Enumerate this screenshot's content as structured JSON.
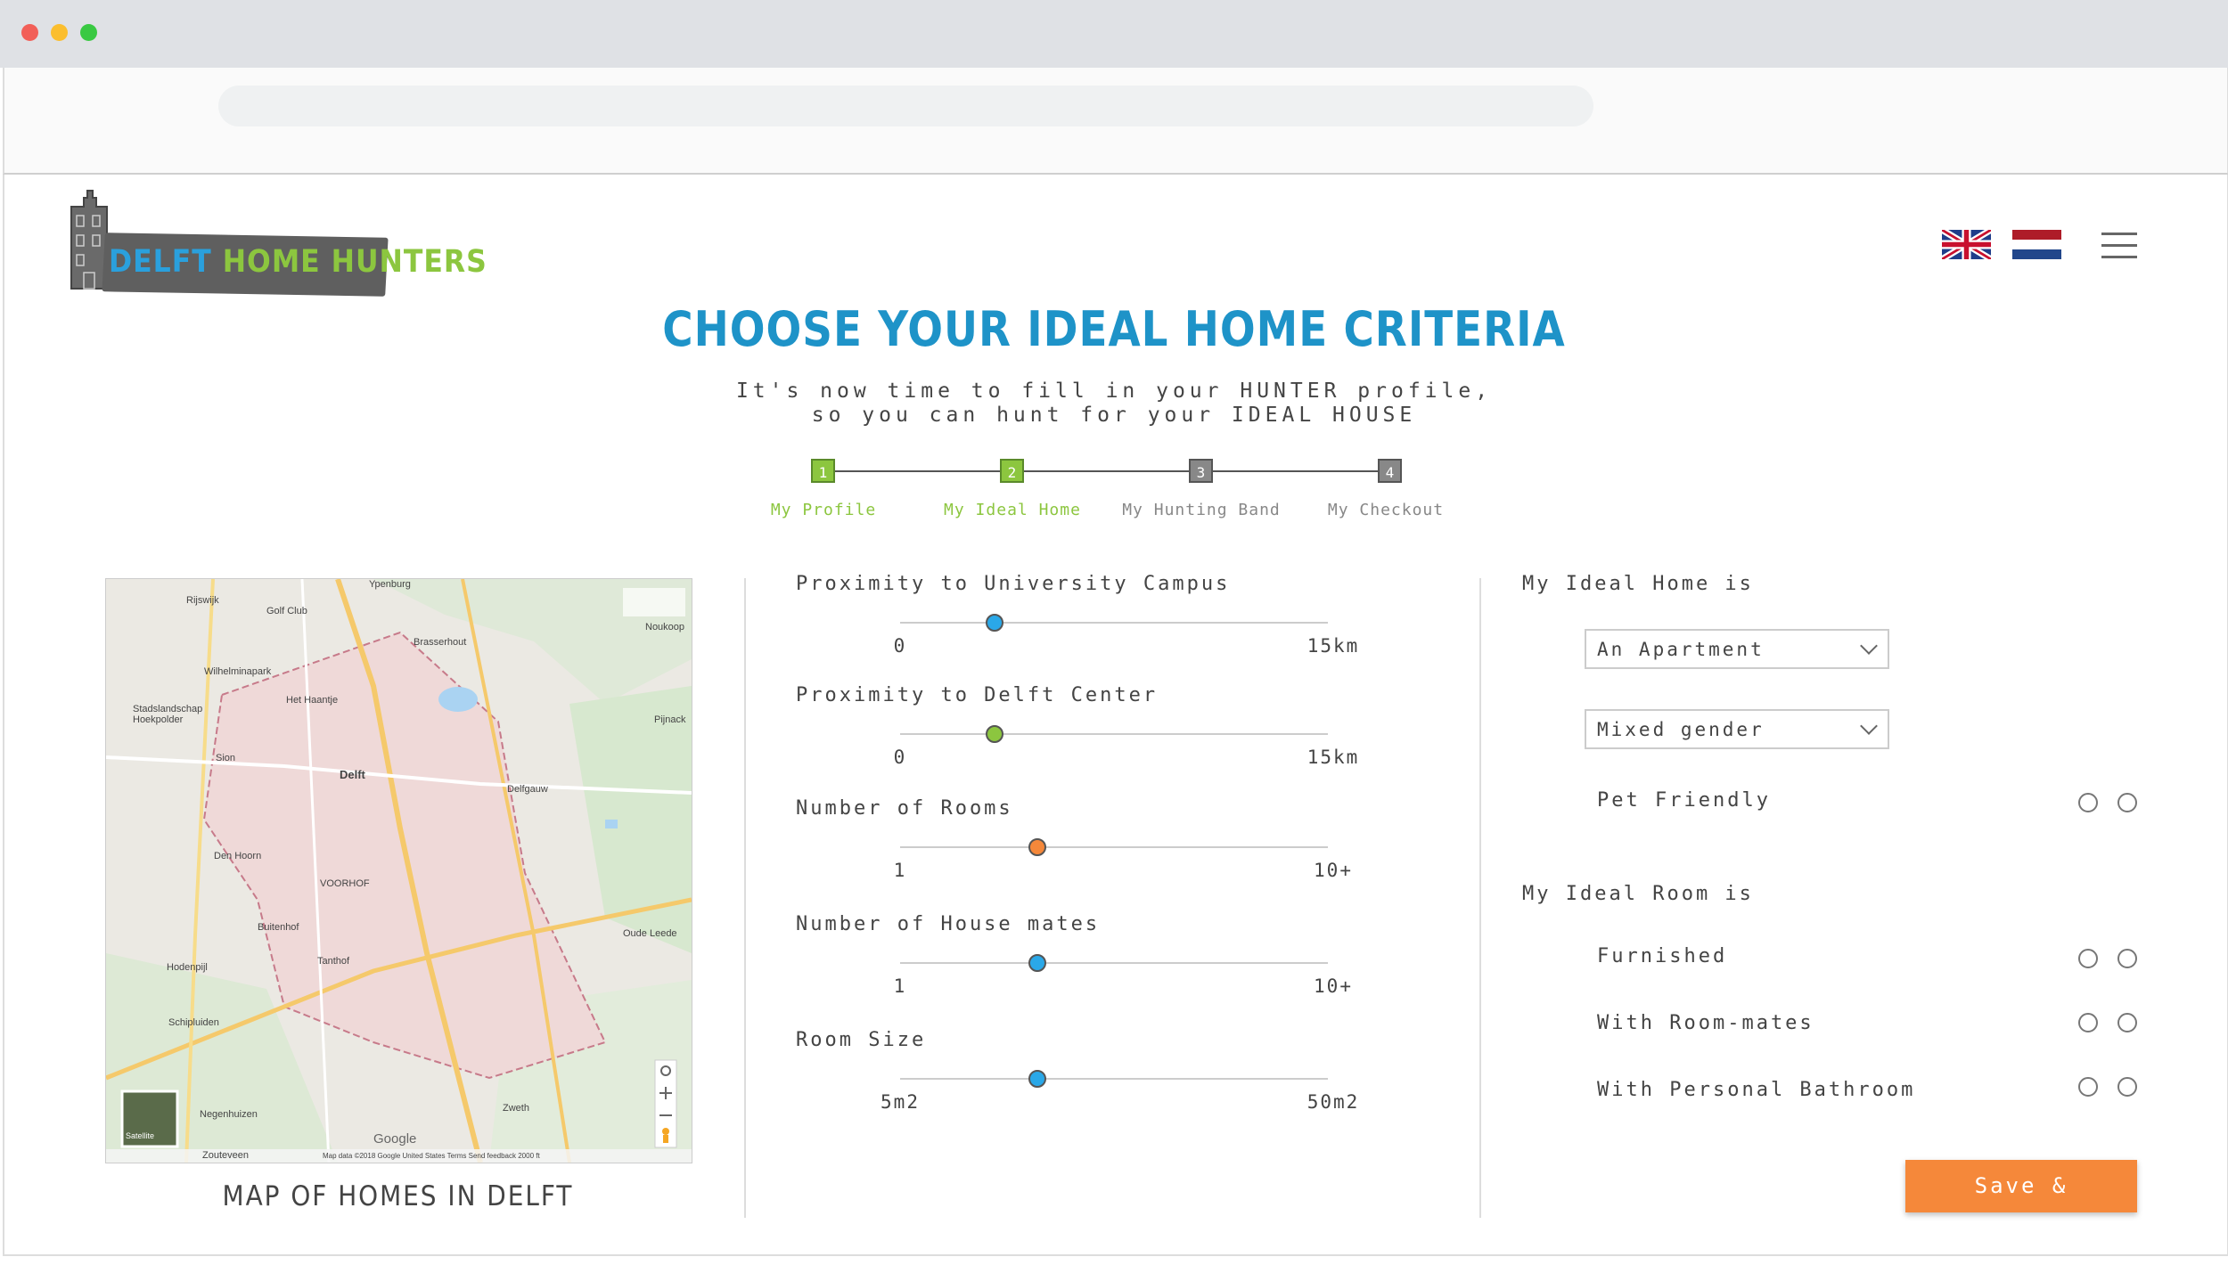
{
  "header": {
    "logo_text_part1": "DELFT",
    "logo_text_part2": "HOME HUNTERS"
  },
  "title": "CHOOSE YOUR IDEAL HOME CRITERIA",
  "subtitle_line1": "It's now time to fill in your HUNTER profile,",
  "subtitle_line2": "so you can hunt for your IDEAL HOUSE",
  "stepper": {
    "steps": [
      {
        "number": "1",
        "label": "My Profile",
        "status": "done"
      },
      {
        "number": "2",
        "label": "My Ideal Home",
        "status": "done"
      },
      {
        "number": "3",
        "label": "My Hunting Band",
        "status": "todo"
      },
      {
        "number": "4",
        "label": "My Checkout",
        "status": "todo"
      }
    ]
  },
  "map": {
    "caption": "MAP OF HOMES IN DELFT",
    "labels": {
      "delft": "Delft",
      "rijswijk": "Rijswijk",
      "ypenburg": "Ypenburg",
      "noukoop": "Noukoop",
      "den_hoorn": "Den Hoorn",
      "voorhof": "VOORHOF",
      "tanthof": "Tanthof",
      "buitenhof": "Buitenhof",
      "schipluiden": "Schipluiden",
      "hodenpijl": "Hodenpijl",
      "delfgauw": "Delfgauw",
      "pijnacker": "Pijnack",
      "oude_leede": "Oude Leede",
      "negenhuizen": "Negenhuizen",
      "zouteveen": "Zouteveen",
      "zweth": "Zweth",
      "het_haantje": "Het Haantje",
      "wilhelminapark": "Wilhelminapark",
      "brasserhout": "Brasserhout",
      "sion": "Sion",
      "stadslandschap": "Stadslandschap Hoekpolder",
      "golf_club": "Golf Club",
      "satellite": "Satellite",
      "google": "Google",
      "footer": "Map data ©2018 Google    United States    Terms    Send feedback    2000 ft"
    }
  },
  "sliders": [
    {
      "label": "Proximity to University Campus",
      "min": "0",
      "max": "15km",
      "value_fraction": 0.22,
      "color": "#2aa8e8"
    },
    {
      "label": "Proximity to Delft Center",
      "min": "0",
      "max": "15km",
      "value_fraction": 0.22,
      "color": "#8cc63f"
    },
    {
      "label": "Number of Rooms",
      "min": "1",
      "max": "10+",
      "value_fraction": 0.32,
      "color": "#f5883a"
    },
    {
      "label": "Number of House mates",
      "min": "1",
      "max": "10+",
      "value_fraction": 0.32,
      "color": "#2aa8e8"
    },
    {
      "label": "Room Size",
      "min": "5m2",
      "max": "50m2",
      "value_fraction": 0.32,
      "color": "#2aa8e8"
    }
  ],
  "ideal_home": {
    "title": "My Ideal Home is",
    "type_select": "An Apartment",
    "gender_select": "Mixed gender",
    "pet_friendly": "Pet Friendly"
  },
  "ideal_room": {
    "title": "My Ideal Room is",
    "options": [
      "Furnished",
      "With Room-mates",
      "With Personal Bathroom"
    ]
  },
  "save_button": "Save & Continue",
  "colors": {
    "title_blue": "#1e93c8",
    "step_green": "#8cc63f",
    "accent_orange": "#f5883a"
  }
}
